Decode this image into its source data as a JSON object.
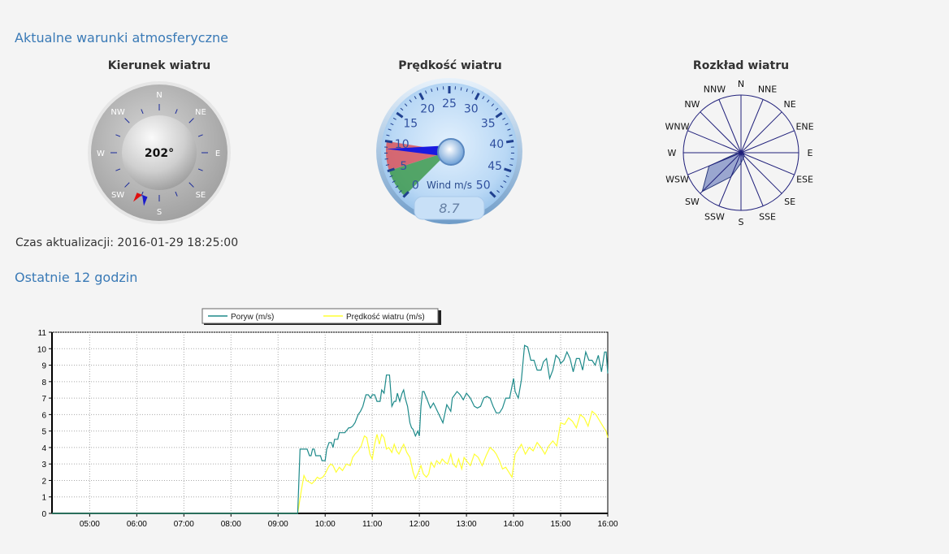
{
  "header": {
    "current_title": "Aktualne warunki atmosferyczne",
    "last12_title": "Ostatnie 12 godzin",
    "update_label": "Czas aktualizacji: 2016-01-29 18:25:00"
  },
  "compass": {
    "title": "Kierunek wiatru",
    "value_text": "202°",
    "direction_deg": 202,
    "labels": [
      "N",
      "NE",
      "E",
      "SE",
      "S",
      "SW",
      "W",
      "NW"
    ]
  },
  "speed_gauge": {
    "title": "Prędkość wiatru",
    "unit_label": "Wind m/s",
    "digital_value": "8.7",
    "value": 8.7,
    "scale_labels": [
      "0",
      "5",
      "10",
      "15",
      "20",
      "25",
      "30",
      "35",
      "40",
      "45",
      "50"
    ]
  },
  "wind_rose": {
    "title": "Rozkład wiatru",
    "directions": [
      "N",
      "NNE",
      "NE",
      "ENE",
      "E",
      "ESE",
      "SE",
      "SSE",
      "S",
      "SSW",
      "SW",
      "WSW",
      "W",
      "WNW",
      "NW",
      "NNW"
    ],
    "distribution": [
      0.05,
      0.03,
      0.03,
      0.03,
      0.03,
      0.05,
      0.08,
      0.1,
      0.18,
      0.45,
      0.95,
      0.6,
      0.05,
      0.03,
      0.03,
      0.03
    ]
  },
  "chart_data": {
    "type": "line",
    "legend": [
      "Poryw (m/s)",
      "Prędkość wiatru (m/s)"
    ],
    "x_ticks": [
      "05:00",
      "06:00",
      "07:00",
      "08:00",
      "09:00",
      "10:00",
      "11:00",
      "12:00",
      "13:00",
      "14:00",
      "15:00",
      "16:00"
    ],
    "y_ticks": [
      "0",
      "1",
      "2",
      "3",
      "4",
      "5",
      "6",
      "7",
      "8",
      "9",
      "10",
      "11"
    ],
    "xlim": [
      "04:12",
      "16:00"
    ],
    "ylim": [
      0,
      11
    ],
    "grid": true,
    "legend_position": "top",
    "series": [
      {
        "name": "Poryw (m/s)",
        "color": "#1e8a8a",
        "x": [
          "04:12",
          "09:25",
          "09:28",
          "09:30",
          "09:37",
          "09:40",
          "09:42",
          "09:44",
          "09:46",
          "09:48",
          "09:54",
          "09:56",
          "10:00",
          "10:02",
          "10:05",
          "10:08",
          "10:10",
          "10:12",
          "10:16",
          "10:18",
          "10:22",
          "10:25",
          "10:30",
          "10:32",
          "10:35",
          "10:38",
          "10:42",
          "10:45",
          "10:48",
          "10:52",
          "10:55",
          "10:58",
          "11:00",
          "11:03",
          "11:06",
          "11:10",
          "11:12",
          "11:15",
          "11:18",
          "11:22",
          "11:25",
          "11:28",
          "11:30",
          "11:32",
          "11:35",
          "11:38",
          "11:40",
          "11:42",
          "11:45",
          "11:48",
          "11:50",
          "11:52",
          "11:55",
          "11:58",
          "12:00",
          "12:02",
          "12:04",
          "12:06",
          "12:10",
          "12:14",
          "12:18",
          "12:20",
          "12:25",
          "12:30",
          "12:35",
          "12:40",
          "12:42",
          "12:48",
          "12:52",
          "12:56",
          "13:00",
          "13:05",
          "13:10",
          "13:14",
          "13:18",
          "13:22",
          "13:26",
          "13:30",
          "13:34",
          "13:38",
          "13:42",
          "13:46",
          "13:50",
          "13:55",
          "14:00",
          "14:02",
          "14:06",
          "14:10",
          "14:14",
          "14:18",
          "14:22",
          "14:26",
          "14:30",
          "14:35",
          "14:38",
          "14:42",
          "14:46",
          "14:50",
          "14:54",
          "14:58",
          "15:00",
          "15:04",
          "15:08",
          "15:12",
          "15:16",
          "15:20",
          "15:24",
          "15:28",
          "15:32",
          "15:36",
          "15:40",
          "15:44",
          "15:48",
          "15:52",
          "15:56",
          "15:58",
          "16:00"
        ],
        "y": [
          0,
          0,
          3.9,
          3.9,
          3.9,
          3.5,
          3.5,
          3.9,
          3.9,
          3.5,
          3.5,
          3.2,
          3.2,
          3.9,
          4.3,
          4.3,
          4.0,
          4.5,
          4.5,
          4.9,
          4.9,
          4.9,
          5.2,
          5.2,
          5.3,
          5.5,
          6.0,
          6.2,
          6.5,
          7.2,
          7.2,
          7.0,
          7.2,
          7.2,
          6.8,
          6.8,
          7.5,
          7.3,
          8.4,
          8.4,
          6.5,
          6.8,
          6.8,
          7.3,
          6.8,
          7.3,
          7.5,
          7.0,
          6.5,
          5.5,
          5.2,
          5.1,
          4.7,
          5.0,
          4.7,
          6.5,
          7.4,
          7.4,
          6.9,
          6.4,
          6.7,
          6.5,
          6.0,
          5.5,
          6.6,
          6.2,
          7.0,
          7.4,
          7.2,
          6.9,
          7.3,
          7.0,
          6.5,
          6.4,
          6.5,
          7.0,
          7.1,
          7.0,
          6.5,
          6.1,
          6.1,
          6.4,
          7.0,
          7.0,
          8.2,
          7.4,
          7.0,
          8.1,
          10.2,
          10.1,
          9.3,
          9.3,
          8.7,
          8.7,
          9.2,
          9.4,
          8.2,
          8.7,
          9.6,
          9.4,
          9.1,
          9.3,
          9.8,
          9.4,
          8.6,
          9.4,
          9.4,
          8.7,
          9.8,
          9.3,
          9.3,
          9.0,
          9.6,
          8.6,
          9.8,
          9.8,
          8.5
        ]
      },
      {
        "name": "Prędkość wiatru (m/s)",
        "color": "#ffff33",
        "x": [
          "04:12",
          "09:25",
          "09:30",
          "09:33",
          "09:36",
          "09:40",
          "09:43",
          "09:47",
          "09:50",
          "09:53",
          "09:57",
          "10:00",
          "10:04",
          "10:07",
          "10:10",
          "10:14",
          "10:18",
          "10:22",
          "10:27",
          "10:32",
          "10:35",
          "10:38",
          "10:42",
          "10:46",
          "10:50",
          "10:53",
          "10:57",
          "11:00",
          "11:03",
          "11:06",
          "11:09",
          "11:12",
          "11:15",
          "11:18",
          "11:21",
          "11:25",
          "11:28",
          "11:31",
          "11:34",
          "11:37",
          "11:40",
          "11:44",
          "11:48",
          "11:52",
          "11:55",
          "11:58",
          "12:02",
          "12:05",
          "12:09",
          "12:12",
          "12:15",
          "12:19",
          "12:22",
          "12:26",
          "12:29",
          "12:33",
          "12:36",
          "12:40",
          "12:43",
          "12:47",
          "12:50",
          "12:54",
          "12:57",
          "13:00",
          "13:05",
          "13:10",
          "13:15",
          "13:20",
          "13:25",
          "13:30",
          "13:35",
          "13:38",
          "13:42",
          "13:46",
          "13:50",
          "13:54",
          "13:58",
          "14:02",
          "14:06",
          "14:10",
          "14:15",
          "14:20",
          "14:25",
          "14:30",
          "14:35",
          "14:40",
          "14:45",
          "14:50",
          "14:55",
          "15:00",
          "15:05",
          "15:10",
          "15:15",
          "15:20",
          "15:25",
          "15:30",
          "15:35",
          "15:40",
          "15:45",
          "15:50",
          "15:55",
          "15:58",
          "16:00"
        ],
        "y": [
          0,
          0,
          1.5,
          2.3,
          2.0,
          1.9,
          1.8,
          2.0,
          2.2,
          2.1,
          2.2,
          2.4,
          2.8,
          3.0,
          2.9,
          2.5,
          2.8,
          2.6,
          3.0,
          2.9,
          3.4,
          3.6,
          3.8,
          4.1,
          4.7,
          4.6,
          3.6,
          3.3,
          4.2,
          4.8,
          4.2,
          4.8,
          4.6,
          3.9,
          4.0,
          3.7,
          4.2,
          3.8,
          3.6,
          3.9,
          4.2,
          3.7,
          3.4,
          2.5,
          2.1,
          2.4,
          2.9,
          2.4,
          2.2,
          2.4,
          3.1,
          2.8,
          3.2,
          3.0,
          3.3,
          3.1,
          3.0,
          3.6,
          3.0,
          2.8,
          3.3,
          2.7,
          3.4,
          3.2,
          2.9,
          3.6,
          3.4,
          2.9,
          3.5,
          4.0,
          3.8,
          3.6,
          3.2,
          2.7,
          2.8,
          2.5,
          2.2,
          3.6,
          3.9,
          4.2,
          3.6,
          4.0,
          3.8,
          4.3,
          4.0,
          3.6,
          4.1,
          4.4,
          4.1,
          5.5,
          5.4,
          5.8,
          5.6,
          5.2,
          6.0,
          5.8,
          5.3,
          6.2,
          6.0,
          5.6,
          5.2,
          5.0,
          4.6
        ]
      }
    ]
  }
}
